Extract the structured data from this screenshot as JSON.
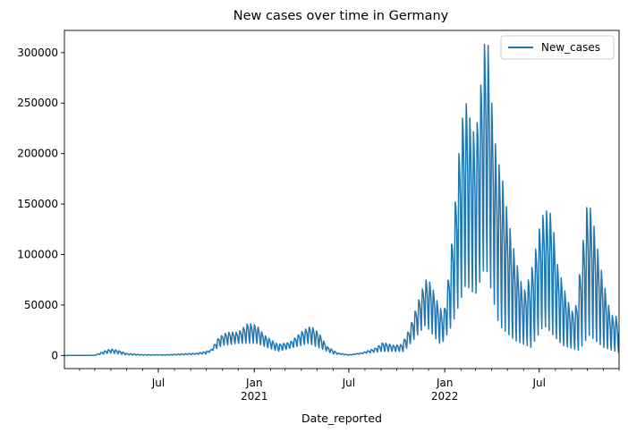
{
  "chart_data": {
    "type": "line",
    "title": "New cases over time in Germany",
    "xlabel": "Date_reported",
    "ylabel": "",
    "x_range": [
      "2020-01-03",
      "2022-12-01"
    ],
    "ylim": [
      -13000,
      322000
    ],
    "y_ticks": [
      0,
      50000,
      100000,
      150000,
      200000,
      250000,
      300000
    ],
    "y_tick_labels": [
      "0",
      "50000",
      "100000",
      "150000",
      "200000",
      "250000",
      "300000"
    ],
    "x_ticks": [
      {
        "date": "2020-07-01",
        "label": "Jul",
        "sub": ""
      },
      {
        "date": "2021-01-01",
        "label": "Jan",
        "sub": "2021"
      },
      {
        "date": "2021-07-01",
        "label": "Jul",
        "sub": ""
      },
      {
        "date": "2022-01-01",
        "label": "Jan",
        "sub": "2022"
      },
      {
        "date": "2022-07-01",
        "label": "Jul",
        "sub": ""
      }
    ],
    "legend": {
      "position": "top-right",
      "entries": [
        "New_cases"
      ]
    },
    "grid": false,
    "line_color": "#1f77b4",
    "series": [
      {
        "name": "New_cases",
        "envelope_high": [
          [
            "2020-01-03",
            0
          ],
          [
            "2020-03-01",
            200
          ],
          [
            "2020-03-20",
            4500
          ],
          [
            "2020-04-01",
            6500
          ],
          [
            "2020-04-15",
            5000
          ],
          [
            "2020-05-01",
            2000
          ],
          [
            "2020-06-01",
            800
          ],
          [
            "2020-07-15",
            700
          ],
          [
            "2020-08-15",
            1600
          ],
          [
            "2020-09-15",
            2200
          ],
          [
            "2020-10-10",
            5500
          ],
          [
            "2020-10-25",
            18000
          ],
          [
            "2020-11-10",
            23000
          ],
          [
            "2020-12-01",
            23000
          ],
          [
            "2020-12-20",
            32000
          ],
          [
            "2021-01-05",
            30000
          ],
          [
            "2021-01-20",
            20000
          ],
          [
            "2021-02-15",
            11000
          ],
          [
            "2021-03-10",
            13000
          ],
          [
            "2021-04-05",
            25000
          ],
          [
            "2021-04-20",
            29000
          ],
          [
            "2021-05-05",
            22000
          ],
          [
            "2021-05-20",
            9000
          ],
          [
            "2021-06-10",
            2500
          ],
          [
            "2021-07-01",
            700
          ],
          [
            "2021-07-25",
            2500
          ],
          [
            "2021-08-20",
            7000
          ],
          [
            "2021-09-05",
            13000
          ],
          [
            "2021-09-25",
            10000
          ],
          [
            "2021-10-10",
            11000
          ],
          [
            "2021-10-25",
            26000
          ],
          [
            "2021-11-10",
            52000
          ],
          [
            "2021-11-25",
            75000
          ],
          [
            "2021-12-05",
            72000
          ],
          [
            "2021-12-20",
            50000
          ],
          [
            "2021-12-30",
            41000
          ],
          [
            "2022-01-10",
            87000
          ],
          [
            "2022-01-20",
            145000
          ],
          [
            "2022-01-28",
            200000
          ],
          [
            "2022-02-05",
            240000
          ],
          [
            "2022-02-12",
            251000
          ],
          [
            "2022-02-20",
            230000
          ],
          [
            "2022-03-01",
            215000
          ],
          [
            "2022-03-10",
            262000
          ],
          [
            "2022-03-18",
            308000
          ],
          [
            "2022-03-25",
            307000
          ],
          [
            "2022-04-01",
            250000
          ],
          [
            "2022-04-10",
            198000
          ],
          [
            "2022-04-20",
            180000
          ],
          [
            "2022-05-01",
            140000
          ],
          [
            "2022-05-15",
            100000
          ],
          [
            "2022-06-01",
            62000
          ],
          [
            "2022-06-15",
            82000
          ],
          [
            "2022-06-25",
            108000
          ],
          [
            "2022-07-05",
            137000
          ],
          [
            "2022-07-15",
            143000
          ],
          [
            "2022-07-25",
            140000
          ],
          [
            "2022-08-05",
            90000
          ],
          [
            "2022-08-20",
            62000
          ],
          [
            "2022-09-01",
            43000
          ],
          [
            "2022-09-10",
            50000
          ],
          [
            "2022-09-20",
            100000
          ],
          [
            "2022-10-01",
            151000
          ],
          [
            "2022-10-08",
            145000
          ],
          [
            "2022-10-15",
            125000
          ],
          [
            "2022-10-25",
            92000
          ],
          [
            "2022-11-05",
            64000
          ],
          [
            "2022-11-15",
            40000
          ],
          [
            "2022-12-01",
            38000
          ]
        ],
        "envelope_low": [
          [
            "2020-01-03",
            0
          ],
          [
            "2020-03-01",
            50
          ],
          [
            "2020-04-01",
            2500
          ],
          [
            "2020-05-01",
            500
          ],
          [
            "2020-06-01",
            200
          ],
          [
            "2020-08-01",
            300
          ],
          [
            "2020-10-01",
            1500
          ],
          [
            "2020-11-01",
            10000
          ],
          [
            "2020-12-01",
            12000
          ],
          [
            "2021-01-05",
            12000
          ],
          [
            "2021-02-15",
            4000
          ],
          [
            "2021-04-15",
            12000
          ],
          [
            "2021-06-01",
            1500
          ],
          [
            "2021-07-01",
            200
          ],
          [
            "2021-09-01",
            4000
          ],
          [
            "2021-10-15",
            4000
          ],
          [
            "2021-11-25",
            30000
          ],
          [
            "2021-12-25",
            10000
          ],
          [
            "2022-01-15",
            30000
          ],
          [
            "2022-02-10",
            70000
          ],
          [
            "2022-03-01",
            60000
          ],
          [
            "2022-03-20",
            90000
          ],
          [
            "2022-04-15",
            30000
          ],
          [
            "2022-05-15",
            15000
          ],
          [
            "2022-06-15",
            8000
          ],
          [
            "2022-07-10",
            30000
          ],
          [
            "2022-08-15",
            10000
          ],
          [
            "2022-09-15",
            5000
          ],
          [
            "2022-10-05",
            20000
          ],
          [
            "2022-11-01",
            8000
          ],
          [
            "2022-12-01",
            3000
          ]
        ],
        "weekly_cycle": true
      }
    ]
  }
}
